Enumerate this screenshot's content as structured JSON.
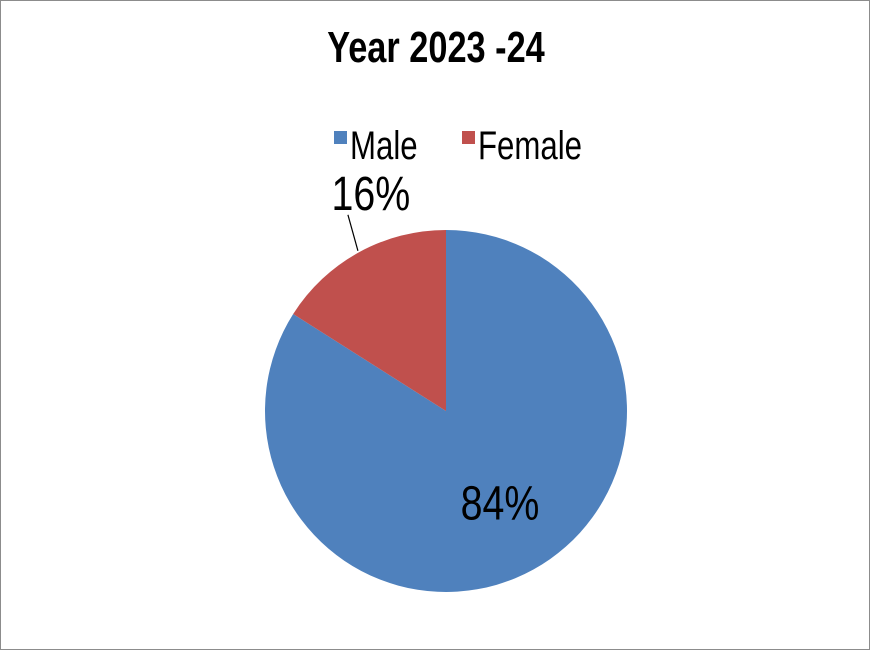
{
  "chart_data": {
    "type": "pie",
    "title": "Year 2023 -24",
    "legend_position": "top",
    "slices": [
      {
        "label": "Male",
        "value": 84,
        "data_label": "84%",
        "color": "#4F81BD"
      },
      {
        "label": "Female",
        "value": 16,
        "data_label": "16%",
        "color": "#C0504D"
      }
    ]
  }
}
